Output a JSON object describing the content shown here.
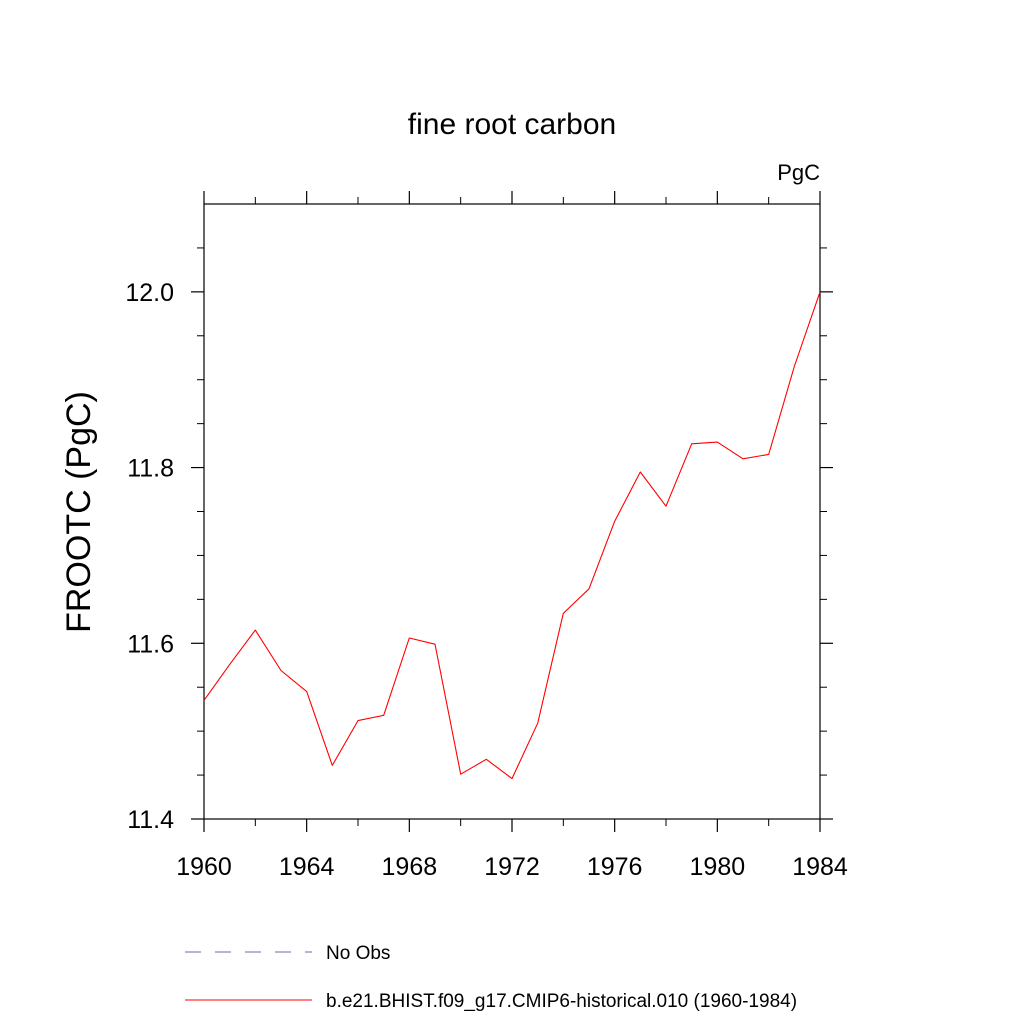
{
  "chart_data": {
    "type": "line",
    "title": "fine root carbon",
    "units_label": "PgC",
    "ylabel": "FROOTC  (PgC)",
    "xlabel": "",
    "xlim": [
      1960,
      1984
    ],
    "ylim": [
      11.4,
      12.1
    ],
    "x_ticks": [
      1960,
      1964,
      1968,
      1972,
      1976,
      1980,
      1984
    ],
    "x_tick_labels": [
      "1960",
      "1964",
      "1968",
      "1972",
      "1976",
      "1980",
      "1984"
    ],
    "y_ticks": [
      11.4,
      11.6,
      11.8,
      12.0
    ],
    "y_tick_labels": [
      "11.4",
      "11.6",
      "11.8",
      "12.0"
    ],
    "grid": false,
    "legend_position": "bottom",
    "x": [
      1960,
      1961,
      1962,
      1963,
      1964,
      1965,
      1966,
      1967,
      1968,
      1969,
      1970,
      1971,
      1972,
      1973,
      1974,
      1975,
      1976,
      1977,
      1978,
      1979,
      1980,
      1981,
      1982,
      1983,
      1984
    ],
    "series": [
      {
        "name": "b.e21.BHIST.f09_g17.CMIP6-historical.010 (1960-1984)",
        "color": "#ff0000",
        "style": "solid",
        "values": [
          11.535,
          11.576,
          11.615,
          11.569,
          11.545,
          11.461,
          11.512,
          11.518,
          11.606,
          11.599,
          11.451,
          11.468,
          11.446,
          11.509,
          11.634,
          11.662,
          11.739,
          11.795,
          11.756,
          11.827,
          11.829,
          11.81,
          11.815,
          11.915,
          12.0
        ]
      }
    ],
    "legend": [
      {
        "label": "No Obs",
        "color": "#6a6aa8",
        "style": "dashed"
      },
      {
        "label": "b.e21.BHIST.f09_g17.CMIP6-historical.010 (1960-1984)",
        "color": "#ff0000",
        "style": "solid"
      }
    ]
  }
}
